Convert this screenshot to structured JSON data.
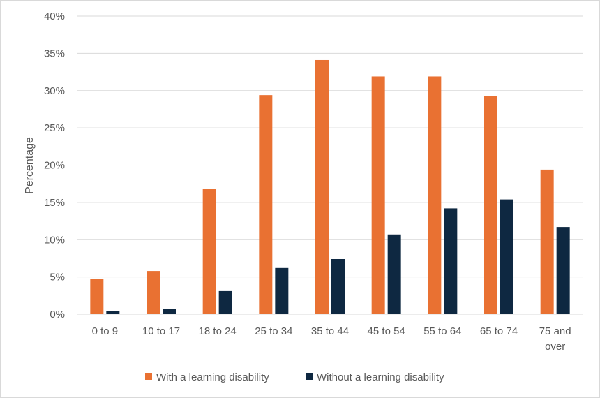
{
  "chart_data": {
    "type": "bar",
    "title": "",
    "xlabel": "",
    "ylabel": "Percentage",
    "ylim": [
      0,
      40
    ],
    "yticks": [
      "0%",
      "5%",
      "10%",
      "15%",
      "20%",
      "25%",
      "30%",
      "35%",
      "40%"
    ],
    "categories": [
      [
        "0 to 9"
      ],
      [
        "10 to 17"
      ],
      [
        "18 to 24"
      ],
      [
        "25 to 34"
      ],
      [
        "35 to 44"
      ],
      [
        "45 to 54"
      ],
      [
        "55 to 64"
      ],
      [
        "65 to 74"
      ],
      [
        "75 and",
        "over"
      ]
    ],
    "series": [
      {
        "name": "With a learning disability",
        "color": "#e97132",
        "values": [
          4.7,
          5.8,
          16.8,
          29.4,
          34.1,
          31.9,
          31.9,
          29.3,
          19.4
        ]
      },
      {
        "name": "Without a learning disability",
        "color": "#0e2841",
        "values": [
          0.4,
          0.7,
          3.1,
          6.2,
          7.4,
          10.7,
          14.2,
          15.4,
          11.7
        ]
      }
    ],
    "grid": true,
    "legend_position": "bottom"
  }
}
